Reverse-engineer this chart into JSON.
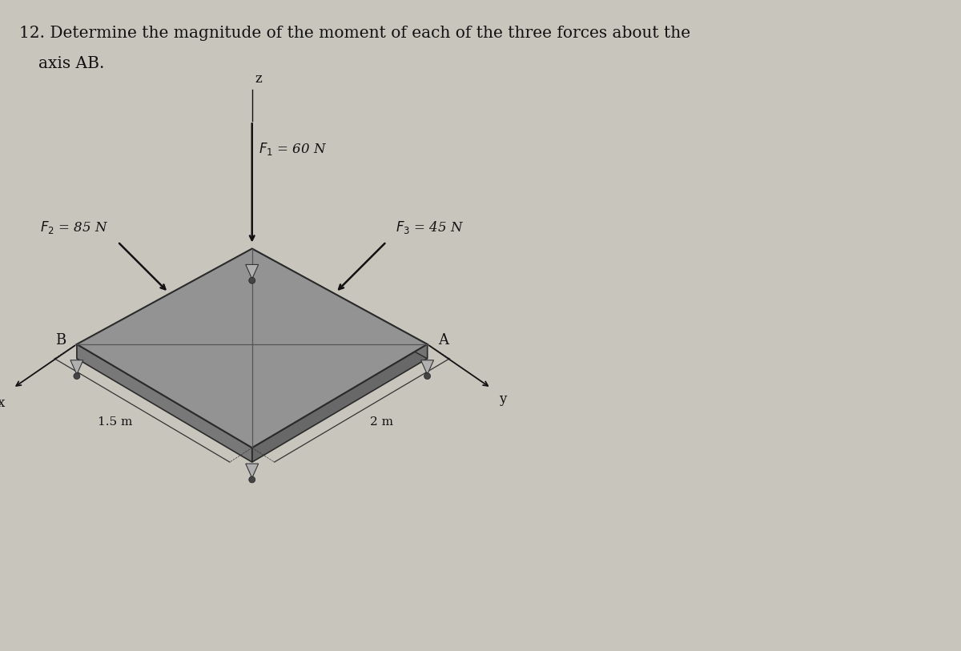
{
  "title_line1": "12. Determine the magnitude of the moment of each of the three forces about the",
  "title_line2": "    axis AB.",
  "bg_color": "#c8c5bd",
  "plate_top_color": "#999999",
  "plate_side_right_color": "#787878",
  "plate_side_bottom_color": "#888888",
  "plate_edge_color": "#2a2a2a",
  "text_color": "#111111",
  "f1_label": "$F_1$ = 60 N",
  "f2_label": "$F_2$ = 85 N",
  "f3_label": "$F_3$ = 45 N",
  "dim1_label": "1.5 m",
  "dim2_label": "2 m",
  "label_A": "A",
  "label_B": "B",
  "label_x": "x",
  "label_y": "y",
  "label_z": "z"
}
